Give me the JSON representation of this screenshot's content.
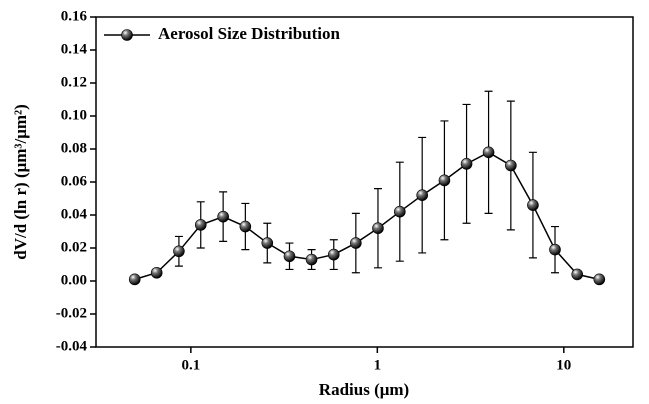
{
  "chart_data": {
    "type": "line",
    "x_label": "Radius (μm)",
    "y_label": "dV/d (ln r) (μm³/μm²)",
    "x": [
      0.05,
      0.0656,
      0.0863,
      0.113,
      0.149,
      0.196,
      0.257,
      0.338,
      0.444,
      0.584,
      0.767,
      1.008,
      1.32,
      1.74,
      2.29,
      3.01,
      3.95,
      5.2,
      6.83,
      8.97,
      11.8,
      15.5
    ],
    "series": [
      {
        "name": "Aerosol Size Distribution",
        "color": "#000000",
        "values": [
          0.001,
          0.005,
          0.018,
          0.034,
          0.039,
          0.033,
          0.023,
          0.015,
          0.013,
          0.016,
          0.023,
          0.032,
          0.042,
          0.052,
          0.061,
          0.071,
          0.078,
          0.07,
          0.046,
          0.019,
          0.004,
          0.001
        ],
        "errors": [
          null,
          null,
          0.009,
          0.014,
          0.015,
          0.014,
          0.012,
          0.008,
          0.006,
          0.009,
          0.018,
          0.024,
          0.03,
          0.035,
          0.036,
          0.036,
          0.037,
          0.039,
          0.032,
          0.014,
          null,
          null
        ]
      }
    ],
    "xlim": [
      0.031,
      23.5
    ],
    "log_x": true,
    "xticks": [
      0.1,
      1,
      10
    ],
    "ylim": [
      -0.04,
      0.16
    ],
    "yticks": [
      {
        "value": -0.04,
        "label": "-0.04"
      },
      {
        "value": -0.02,
        "label": "-0.02"
      },
      {
        "value": 0,
        "label": "0.00"
      },
      {
        "value": 0.02,
        "label": "0.02"
      },
      {
        "value": 0.04,
        "label": "0.04"
      },
      {
        "value": 0.06,
        "label": "0.06"
      },
      {
        "value": 0.08,
        "label": "0.08"
      },
      {
        "value": 0.1,
        "label": "0.10"
      },
      {
        "value": 0.12,
        "label": "0.12"
      },
      {
        "value": 0.14,
        "label": "0.14"
      },
      {
        "value": 0.16,
        "label": "0.16"
      }
    ],
    "legend": "upper left"
  }
}
